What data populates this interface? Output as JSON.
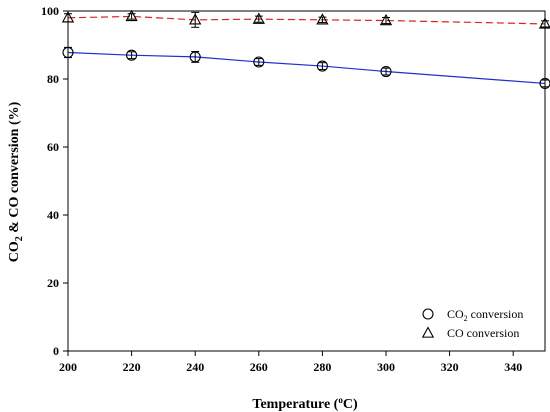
{
  "chart_data": {
    "type": "line",
    "xlabel": {
      "prefix": "Temperature (",
      "sup": "o",
      "suffix": "C)"
    },
    "ylabel": {
      "p1": "CO",
      "sub": "2",
      "p2": " & CO conversion (%)"
    },
    "xlim": [
      200,
      350
    ],
    "ylim": [
      0,
      100
    ],
    "xticks": [
      200,
      220,
      240,
      260,
      280,
      300,
      320,
      340
    ],
    "yticks": [
      0,
      20,
      40,
      60,
      80,
      100
    ],
    "grid": false,
    "legend_position": "bottom-right",
    "series": [
      {
        "key": "co2",
        "legend": {
          "p1": "CO",
          "sub": "2",
          "p2": " conversion"
        },
        "marker": "circle",
        "line_style": "solid",
        "color": "#1f2fd0",
        "x": [
          200,
          220,
          240,
          260,
          280,
          300,
          350
        ],
        "y": [
          87.8,
          87.0,
          86.5,
          85.0,
          83.8,
          82.2,
          78.7
        ],
        "err": [
          1.5,
          1.0,
          1.6,
          1.0,
          1.0,
          1.0,
          1.0
        ]
      },
      {
        "key": "co",
        "legend": {
          "p1": "CO conversion",
          "sub": "",
          "p2": ""
        },
        "marker": "triangle",
        "line_style": "dashed",
        "color": "#e0201f",
        "x": [
          200,
          220,
          240,
          260,
          280,
          300,
          350
        ],
        "y": [
          98.0,
          98.4,
          97.4,
          97.6,
          97.4,
          97.2,
          96.2
        ],
        "err": [
          1.2,
          0.8,
          2.2,
          0.9,
          0.8,
          0.9,
          0.9
        ]
      }
    ]
  }
}
